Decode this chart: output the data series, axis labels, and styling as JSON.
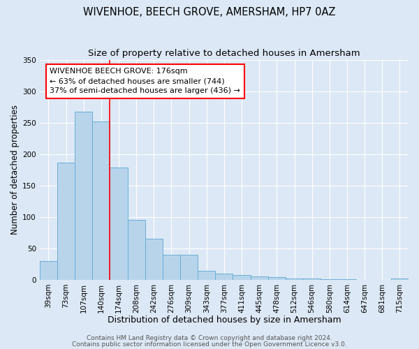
{
  "title": "WIVENHOE, BEECH GROVE, AMERSHAM, HP7 0AZ",
  "subtitle": "Size of property relative to detached houses in Amersham",
  "xlabel": "Distribution of detached houses by size in Amersham",
  "ylabel": "Number of detached properties",
  "bar_labels": [
    "39sqm",
    "73sqm",
    "107sqm",
    "140sqm",
    "174sqm",
    "208sqm",
    "242sqm",
    "276sqm",
    "309sqm",
    "343sqm",
    "377sqm",
    "411sqm",
    "445sqm",
    "478sqm",
    "512sqm",
    "546sqm",
    "580sqm",
    "614sqm",
    "647sqm",
    "681sqm",
    "715sqm"
  ],
  "bar_values": [
    30,
    186,
    267,
    252,
    178,
    95,
    65,
    40,
    40,
    14,
    10,
    8,
    5,
    4,
    2,
    2,
    1,
    1,
    0,
    0,
    2
  ],
  "bar_color": "#b8d4ea",
  "bar_edge_color": "#6aaed6",
  "background_color": "#dce8f5",
  "grid_color": "#ffffff",
  "ylim": [
    0,
    350
  ],
  "yticks": [
    0,
    50,
    100,
    150,
    200,
    250,
    300,
    350
  ],
  "annotation_box_text": "WIVENHOE BEECH GROVE: 176sqm\n← 63% of detached houses are smaller (744)\n37% of semi-detached houses are larger (436) →",
  "vline_pos": 3.5,
  "footer1": "Contains HM Land Registry data © Crown copyright and database right 2024.",
  "footer2": "Contains public sector information licensed under the Open Government Licence v3.0.",
  "title_fontsize": 10.5,
  "subtitle_fontsize": 9.5,
  "xlabel_fontsize": 9,
  "ylabel_fontsize": 8.5,
  "tick_fontsize": 7.5,
  "annotation_fontsize": 8,
  "footer_fontsize": 6.5
}
